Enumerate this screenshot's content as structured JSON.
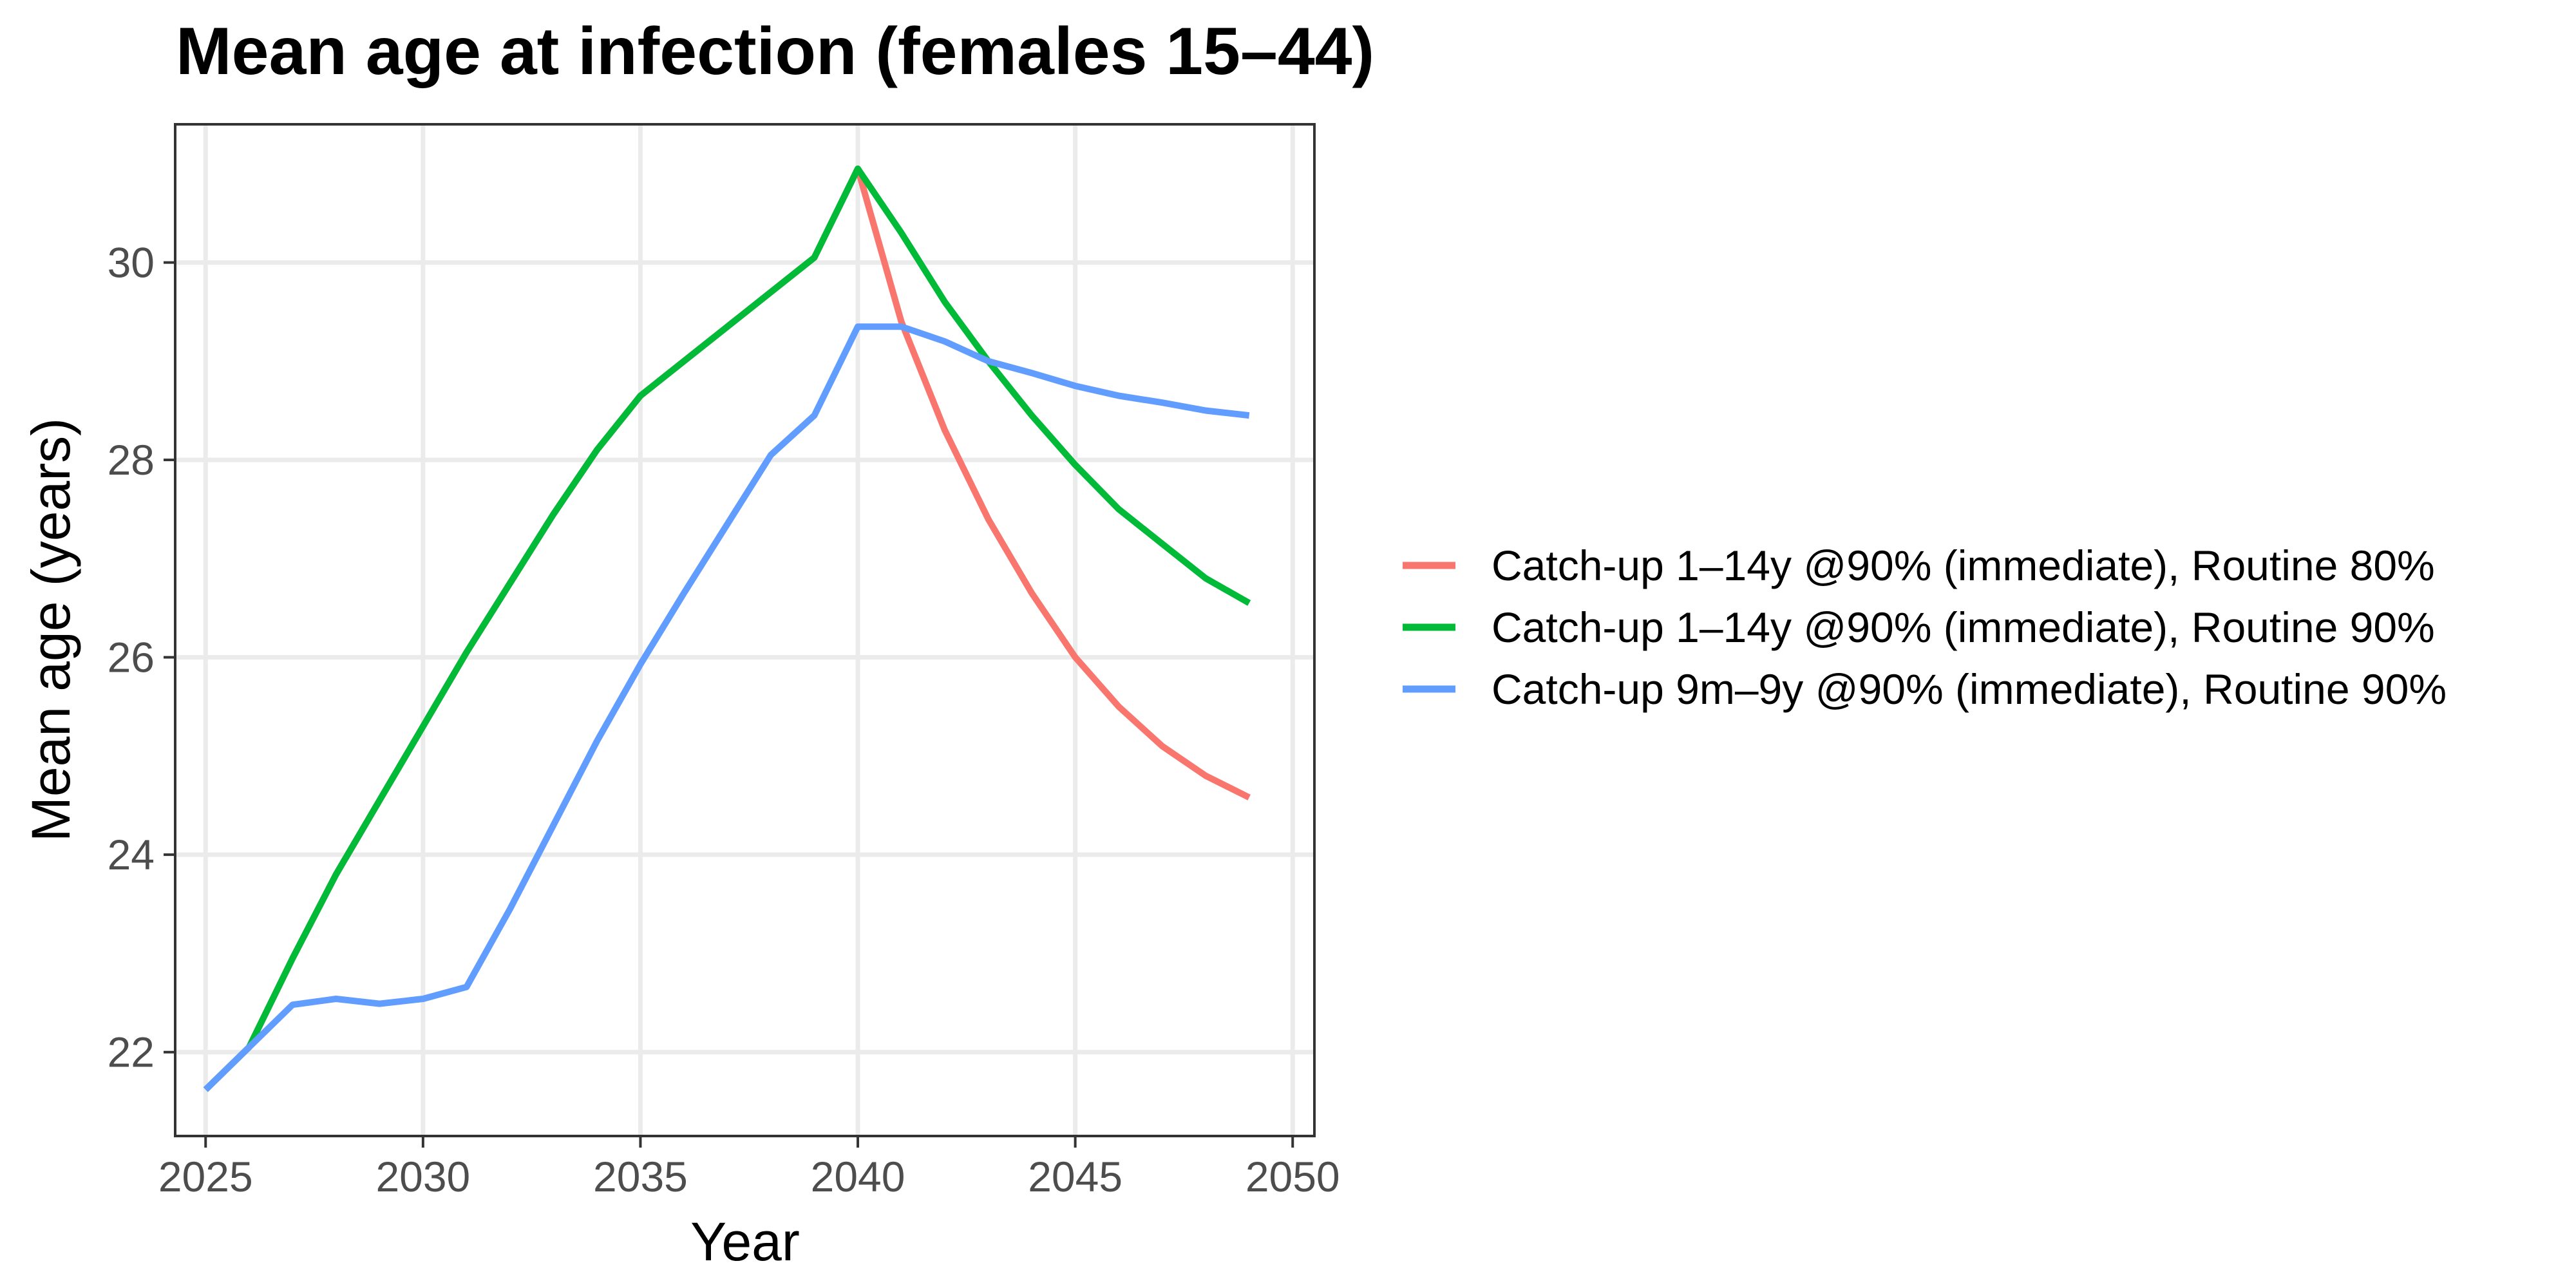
{
  "chart_data": {
    "type": "line",
    "title": "Mean age at infection (females 15–44)",
    "xlabel": "Year",
    "ylabel": "Mean age (years)",
    "xlim": [
      2024.3,
      2050.5
    ],
    "ylim": [
      21.15,
      31.4
    ],
    "xticks": [
      2025,
      2030,
      2035,
      2040,
      2045,
      2050
    ],
    "xtick_labels": [
      "2025",
      "2030",
      "2035",
      "2040",
      "2045",
      "2050"
    ],
    "yticks": [
      22,
      24,
      26,
      28,
      30
    ],
    "ytick_labels": [
      "22",
      "24",
      "26",
      "28",
      "30"
    ],
    "grid": true,
    "legend_position": "right",
    "x": [
      2025,
      2026,
      2027,
      2028,
      2029,
      2030,
      2031,
      2032,
      2033,
      2034,
      2035,
      2036,
      2037,
      2038,
      2039,
      2040,
      2041,
      2042,
      2043,
      2044,
      2045,
      2046,
      2047,
      2048,
      2049
    ],
    "series": [
      {
        "name": "Catch-up 1–14y @90% (immediate), Routine 80%",
        "color": "#F8766D",
        "values": [
          21.62,
          22.05,
          22.95,
          23.8,
          24.55,
          25.3,
          26.05,
          26.75,
          27.45,
          28.1,
          28.65,
          29.0,
          29.35,
          29.7,
          30.05,
          30.95,
          29.4,
          28.3,
          27.4,
          26.65,
          26.0,
          25.5,
          25.1,
          24.8,
          24.58
        ]
      },
      {
        "name": "Catch-up 1–14y @90% (immediate), Routine 90%",
        "color": "#00BA38",
        "values": [
          21.62,
          22.05,
          22.95,
          23.8,
          24.55,
          25.3,
          26.05,
          26.75,
          27.45,
          28.1,
          28.65,
          29.0,
          29.35,
          29.7,
          30.05,
          30.95,
          30.3,
          29.6,
          29.0,
          28.45,
          27.95,
          27.5,
          27.15,
          26.8,
          26.55
        ]
      },
      {
        "name": "Catch-up 9m–9y @90% (immediate), Routine 90%",
        "color": "#619CFF",
        "values": [
          21.62,
          22.05,
          22.48,
          22.54,
          22.49,
          22.54,
          22.66,
          23.45,
          24.3,
          25.15,
          25.93,
          26.65,
          27.35,
          28.05,
          28.45,
          29.35,
          29.35,
          29.2,
          29.0,
          28.88,
          28.75,
          28.65,
          28.58,
          28.5,
          28.45
        ]
      }
    ]
  }
}
